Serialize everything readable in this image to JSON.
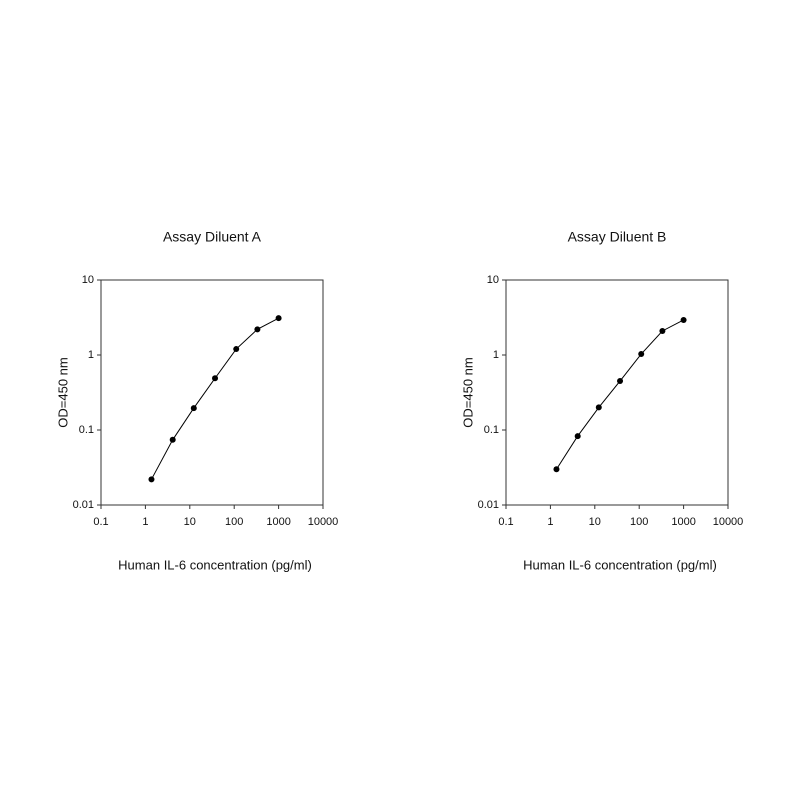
{
  "chart_data": [
    {
      "type": "line",
      "title": "Assay Diluent A",
      "x_label": "Human IL-6 concentration (pg/ml)",
      "y_label": "OD=450 nm",
      "x": [
        1.37,
        4.12,
        12.3,
        37,
        111,
        333,
        1000
      ],
      "values": [
        0.022,
        0.074,
        0.196,
        0.49,
        1.2,
        2.2,
        3.1
      ],
      "color": "#000000",
      "markers": true,
      "xscale": "log",
      "yscale": "log",
      "xlim": [
        0.1,
        10000
      ],
      "xticks": [
        0.1,
        1,
        10,
        100,
        1000,
        10000
      ],
      "ylim": [
        0.01,
        10
      ],
      "yticks": [
        0.01,
        0.1,
        1,
        10
      ]
    },
    {
      "type": "line",
      "title": "Assay Diluent B",
      "x_label": "Human IL-6 concentration (pg/ml)",
      "y_label": "OD=450 nm",
      "x": [
        1.37,
        4.12,
        12.3,
        37,
        111,
        333,
        1000
      ],
      "values": [
        0.03,
        0.083,
        0.2,
        0.45,
        1.03,
        2.09,
        2.93
      ],
      "color": "#000000",
      "markers": true,
      "xscale": "log",
      "yscale": "log",
      "xlim": [
        0.1,
        10000
      ],
      "xticks": [
        0.1,
        1,
        10,
        100,
        1000,
        10000
      ],
      "ylim": [
        0.01,
        10
      ],
      "yticks": [
        0.01,
        0.1,
        1,
        10
      ]
    }
  ]
}
